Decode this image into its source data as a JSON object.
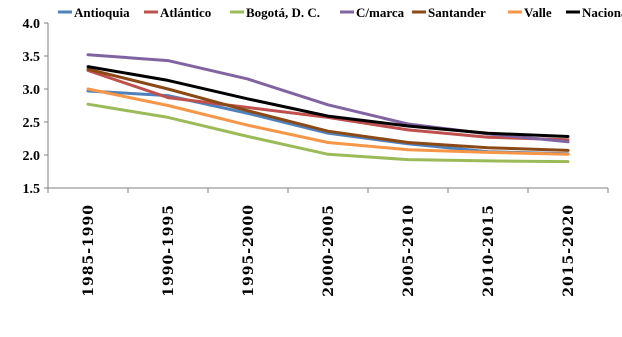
{
  "chart_data": {
    "type": "line",
    "title": "",
    "xlabel": "",
    "ylabel": "",
    "categories": [
      "1985-1990",
      "1990-1995",
      "1995-2000",
      "2000-2005",
      "2005-2010",
      "2010-2015",
      "2015-2020"
    ],
    "ylim": [
      1.5,
      4.0
    ],
    "yticks": [
      "1.5",
      "2.0",
      "2.5",
      "3.0",
      "3.5",
      "4.0"
    ],
    "grid": false,
    "legend_position": "top",
    "series": [
      {
        "name": "Antioquia",
        "color": "#4f81bd",
        "values": [
          2.97,
          2.9,
          2.63,
          2.33,
          2.17,
          2.05,
          2.02
        ]
      },
      {
        "name": "Atlántico",
        "color": "#c0504d",
        "values": [
          3.28,
          2.87,
          2.72,
          2.57,
          2.38,
          2.27,
          2.23
        ]
      },
      {
        "name": "Bogotá, D. C.",
        "color": "#9bbb59",
        "values": [
          2.77,
          2.57,
          2.28,
          2.01,
          1.93,
          1.91,
          1.9
        ]
      },
      {
        "name": "C/marca",
        "color": "#8064a2",
        "values": [
          3.52,
          3.43,
          3.15,
          2.76,
          2.47,
          2.32,
          2.2
        ]
      },
      {
        "name": "Santander",
        "color": "#8b4a15",
        "values": [
          3.3,
          3.0,
          2.67,
          2.36,
          2.19,
          2.11,
          2.07
        ]
      },
      {
        "name": "Valle",
        "color": "#f79646",
        "values": [
          3.0,
          2.75,
          2.45,
          2.19,
          2.08,
          2.04,
          2.01
        ]
      },
      {
        "name": "Nacional",
        "color": "#000000",
        "values": [
          3.34,
          3.13,
          2.85,
          2.59,
          2.44,
          2.33,
          2.28
        ]
      }
    ]
  }
}
